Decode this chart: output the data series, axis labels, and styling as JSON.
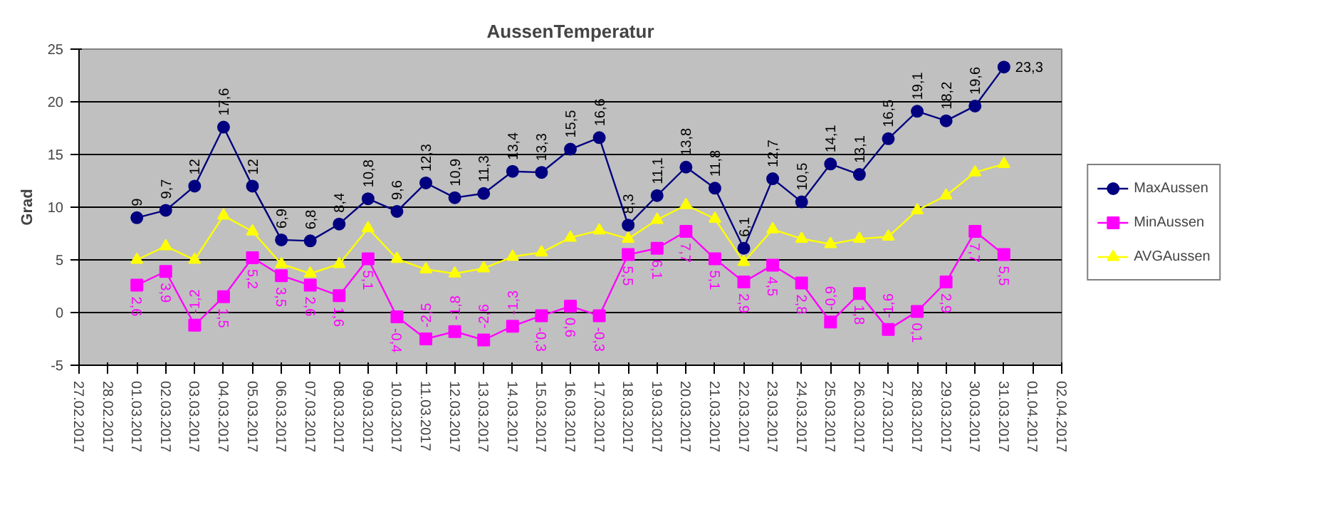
{
  "chart_data": {
    "type": "line",
    "title": "AussenTemperatur",
    "ylabel": "Grad",
    "x": [
      "2017-03-01",
      "2017-03-02",
      "2017-03-03",
      "2017-03-04",
      "2017-03-05",
      "2017-03-06",
      "2017-03-07",
      "2017-03-08",
      "2017-03-09",
      "2017-03-10",
      "2017-03-11",
      "2017-03-12",
      "2017-03-13",
      "2017-03-14",
      "2017-03-15",
      "2017-03-16",
      "2017-03-17",
      "2017-03-18",
      "2017-03-19",
      "2017-03-20",
      "2017-03-21",
      "2017-03-22",
      "2017-03-23",
      "2017-03-24",
      "2017-03-25",
      "2017-03-26",
      "2017-03-27",
      "2017-03-28",
      "2017-03-29",
      "2017-03-30",
      "2017-03-31"
    ],
    "series": [
      {
        "name": "MaxAussen",
        "color": "#000080",
        "marker": "circle",
        "values": [
          9,
          9.7,
          12,
          17.6,
          12,
          6.9,
          6.8,
          8.4,
          10.8,
          9.6,
          12.3,
          10.9,
          11.3,
          13.4,
          13.3,
          15.5,
          16.6,
          8.3,
          11.1,
          13.8,
          11.8,
          6.1,
          12.7,
          10.5,
          14.1,
          13.1,
          16.5,
          19.1,
          18.2,
          19.6,
          23.3
        ],
        "value_labels": [
          "9",
          "9,7",
          "12",
          "17,6",
          "12",
          "6,9",
          "6,8",
          "8,4",
          "10,8",
          "9,6",
          "12,3",
          "10,9",
          "11,3",
          "13,4",
          "13,3",
          "15,5",
          "16,6",
          "8,3",
          "11,1",
          "13,8",
          "11,8",
          "6,1",
          "12,7",
          "10,5",
          "14,1",
          "13,1",
          "16,5",
          "19,1",
          "18,2",
          "19,6",
          "23,3"
        ]
      },
      {
        "name": "MinAussen",
        "color": "#ff00ff",
        "marker": "square",
        "values": [
          2.6,
          3.9,
          -1.2,
          1.5,
          5.2,
          3.5,
          2.6,
          1.6,
          5.1,
          -0.4,
          -2.5,
          -1.8,
          -2.6,
          -1.3,
          -0.3,
          0.6,
          -0.3,
          5.5,
          6.1,
          7.7,
          5.1,
          2.9,
          4.5,
          2.8,
          -0.9,
          1.8,
          -1.6,
          0.1,
          2.9,
          7.7,
          5.5
        ],
        "value_labels": [
          "2,6",
          "3,9",
          "-1,2",
          "1,5",
          "5,2",
          "3,5",
          "2,6",
          "1,6",
          "5,1",
          "-0,4",
          "-2,5",
          "-1,8",
          "-2,6",
          "-1,3",
          "-0,3",
          "0,6",
          "-0,3",
          "5,5",
          "6,1",
          "7,7",
          "5,1",
          "2,9",
          "4,5",
          "2,8",
          "-0,9",
          "1,8",
          "-1,6",
          "0,1",
          "2,9",
          "7,7",
          "5,5"
        ]
      },
      {
        "name": "AVGAussen",
        "color": "#ffff00",
        "marker": "triangle",
        "values": [
          5.0,
          6.3,
          5.0,
          9.2,
          7.7,
          4.6,
          3.7,
          4.6,
          8.0,
          5.1,
          4.1,
          3.7,
          4.2,
          5.3,
          5.7,
          7.1,
          7.8,
          7.0,
          8.8,
          10.2,
          8.9,
          4.8,
          7.9,
          7.0,
          6.5,
          7.0,
          7.2,
          9.7,
          11.1,
          13.3,
          14.1
        ]
      }
    ],
    "xlim": [
      "2017-02-27",
      "2017-04-02"
    ],
    "xticks": [
      {
        "value": "2017-02-27",
        "label": "27.02.2017"
      },
      {
        "value": "2017-02-28",
        "label": "28.02.2017"
      },
      {
        "value": "2017-03-01",
        "label": "01.03.2017"
      },
      {
        "value": "2017-03-02",
        "label": "02.03.2017"
      },
      {
        "value": "2017-03-03",
        "label": "03.03.2017"
      },
      {
        "value": "2017-03-04",
        "label": "04.03.2017"
      },
      {
        "value": "2017-03-05",
        "label": "05.03.2017"
      },
      {
        "value": "2017-03-06",
        "label": "06.03.2017"
      },
      {
        "value": "2017-03-07",
        "label": "07.03.2017"
      },
      {
        "value": "2017-03-08",
        "label": "08.03.2017"
      },
      {
        "value": "2017-03-09",
        "label": "09.03.2017"
      },
      {
        "value": "2017-03-10",
        "label": "10.03.2017"
      },
      {
        "value": "2017-03-11",
        "label": "11.03.2017"
      },
      {
        "value": "2017-03-12",
        "label": "12.03.2017"
      },
      {
        "value": "2017-03-13",
        "label": "13.03.2017"
      },
      {
        "value": "2017-03-14",
        "label": "14.03.2017"
      },
      {
        "value": "2017-03-15",
        "label": "15.03.2017"
      },
      {
        "value": "2017-03-16",
        "label": "16.03.2017"
      },
      {
        "value": "2017-03-17",
        "label": "17.03.2017"
      },
      {
        "value": "2017-03-18",
        "label": "18.03.2017"
      },
      {
        "value": "2017-03-19",
        "label": "19.03.2017"
      },
      {
        "value": "2017-03-20",
        "label": "20.03.2017"
      },
      {
        "value": "2017-03-21",
        "label": "21.03.2017"
      },
      {
        "value": "2017-03-22",
        "label": "22.03.2017"
      },
      {
        "value": "2017-03-23",
        "label": "23.03.2017"
      },
      {
        "value": "2017-03-24",
        "label": "24.03.2017"
      },
      {
        "value": "2017-03-25",
        "label": "25.03.2017"
      },
      {
        "value": "2017-03-26",
        "label": "26.03.2017"
      },
      {
        "value": "2017-03-27",
        "label": "27.03.2017"
      },
      {
        "value": "2017-03-28",
        "label": "28.03.2017"
      },
      {
        "value": "2017-03-29",
        "label": "29.03.2017"
      },
      {
        "value": "2017-03-30",
        "label": "30.03.2017"
      },
      {
        "value": "2017-03-31",
        "label": "31.03.2017"
      },
      {
        "value": "2017-04-01",
        "label": "01.04.2017"
      },
      {
        "value": "2017-04-02",
        "label": "02.04.2017"
      }
    ],
    "ylim": [
      -5,
      25
    ],
    "yticks": [
      -5,
      0,
      5,
      10,
      15,
      20,
      25
    ],
    "grid": "y",
    "legend": "right"
  }
}
